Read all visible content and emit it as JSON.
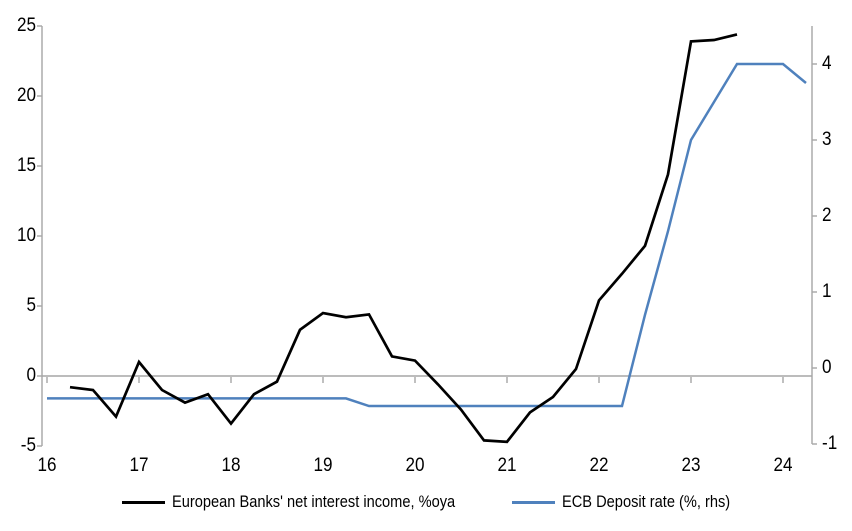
{
  "chart_data": {
    "type": "line",
    "title": "",
    "x_axis": {
      "range": [
        16,
        24.3
      ],
      "ticks": [
        16,
        17,
        18,
        19,
        20,
        21,
        22,
        23,
        24
      ]
    },
    "left_axis": {
      "range": [
        -5,
        25
      ],
      "ticks": [
        -5,
        0,
        5,
        10,
        15,
        20,
        25
      ]
    },
    "right_axis": {
      "range": [
        -1,
        4.5
      ],
      "ticks": [
        -1,
        0,
        1,
        2,
        3,
        4
      ]
    },
    "grid": "zero-line-only",
    "legend_position": "bottom",
    "series": [
      {
        "name": "European Banks' net interest income, %oya",
        "axis": "left",
        "color": "#000000",
        "x": [
          16.25,
          16.5,
          16.75,
          17.0,
          17.25,
          17.5,
          17.75,
          18.0,
          18.25,
          18.5,
          18.75,
          19.0,
          19.25,
          19.5,
          19.75,
          20.0,
          20.25,
          20.5,
          20.75,
          21.0,
          21.25,
          21.5,
          21.75,
          22.0,
          22.25,
          22.5,
          22.75,
          23.0,
          23.25,
          23.5
        ],
        "values": [
          -0.8,
          -1.0,
          -2.9,
          1.0,
          -1.0,
          -1.9,
          -1.3,
          -3.4,
          -1.3,
          -0.4,
          3.3,
          4.5,
          4.2,
          4.4,
          1.4,
          1.1,
          -0.6,
          -2.4,
          -4.6,
          -4.7,
          -2.6,
          -1.5,
          0.5,
          5.4,
          7.3,
          9.3,
          14.4,
          23.9,
          24.0,
          24.4
        ]
      },
      {
        "name": "ECB Deposit rate (%, rhs)",
        "axis": "right",
        "color": "#4f81bd",
        "x": [
          16.0,
          16.25,
          16.5,
          16.75,
          17.0,
          17.25,
          17.5,
          17.75,
          18.0,
          18.25,
          18.5,
          18.75,
          19.0,
          19.25,
          19.5,
          19.75,
          20.0,
          20.25,
          20.5,
          20.75,
          21.0,
          21.25,
          21.5,
          21.75,
          22.0,
          22.25,
          22.5,
          22.75,
          23.0,
          23.25,
          23.5,
          23.75,
          24.0,
          24.25
        ],
        "values": [
          -0.4,
          -0.4,
          -0.4,
          -0.4,
          -0.4,
          -0.4,
          -0.4,
          -0.4,
          -0.4,
          -0.4,
          -0.4,
          -0.4,
          -0.4,
          -0.4,
          -0.5,
          -0.5,
          -0.5,
          -0.5,
          -0.5,
          -0.5,
          -0.5,
          -0.5,
          -0.5,
          -0.5,
          -0.5,
          -0.5,
          0.7,
          1.8,
          3.0,
          3.5,
          4.0,
          4.0,
          4.0,
          3.75
        ]
      }
    ]
  },
  "colors": {
    "axis": "#a6a6a6",
    "zero_line": "#a6a6a6",
    "series1": "#000000",
    "series2": "#4f81bd",
    "text": "#000000",
    "background": "#ffffff"
  }
}
